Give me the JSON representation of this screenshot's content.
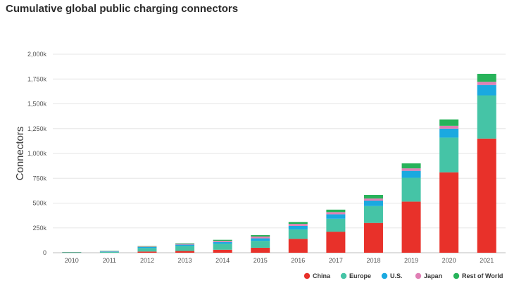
{
  "chart_data": {
    "type": "bar",
    "stacked": true,
    "title": "Cumulative global public charging connectors",
    "xlabel": "",
    "ylabel": "Connectors",
    "categories": [
      "2010",
      "2011",
      "2012",
      "2013",
      "2014",
      "2015",
      "2016",
      "2017",
      "2018",
      "2019",
      "2020",
      "2021"
    ],
    "ylim": [
      0,
      2000
    ],
    "yticks": [
      0,
      250,
      500,
      750,
      1000,
      1250,
      1500,
      1750,
      2000
    ],
    "ytick_labels": [
      "0",
      "250k",
      "500k",
      "750k",
      "1,000k",
      "1,250k",
      "1,500k",
      "1,750k",
      "2,000k"
    ],
    "grid": true,
    "legend_position": "bottom-right",
    "series": [
      {
        "name": "China",
        "color": "#e8312a",
        "values": [
          0,
          0,
          12,
          18,
          30,
          50,
          140,
          212,
          300,
          515,
          810,
          1150
        ]
      },
      {
        "name": "Europe",
        "color": "#45c4a6",
        "values": [
          2,
          8,
          35,
          50,
          60,
          70,
          95,
          130,
          170,
          240,
          350,
          435
        ]
      },
      {
        "name": "U.S.",
        "color": "#1aa9e0",
        "values": [
          2,
          5,
          10,
          13,
          18,
          25,
          35,
          45,
          55,
          70,
          90,
          105
        ]
      },
      {
        "name": "Japan",
        "color": "#e07fb5",
        "values": [
          1,
          3,
          5,
          8,
          12,
          18,
          20,
          22,
          22,
          25,
          28,
          32
        ]
      },
      {
        "name": "Rest of World",
        "color": "#27b35a",
        "values": [
          1,
          3,
          5,
          6,
          10,
          15,
          20,
          25,
          35,
          50,
          65,
          80
        ]
      }
    ]
  }
}
